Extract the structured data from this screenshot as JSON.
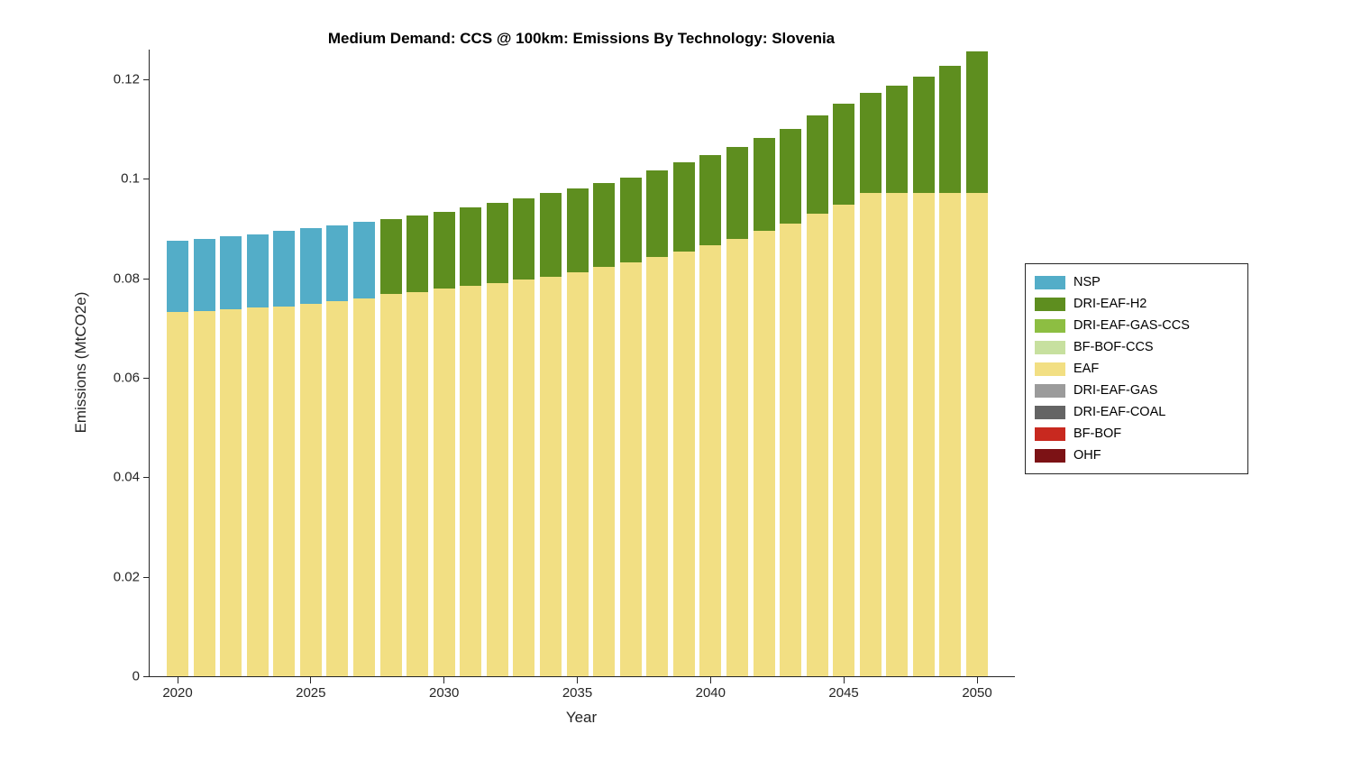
{
  "figure": {
    "background": "#FFFFFF",
    "axis_color": "#262626"
  },
  "chart_data": {
    "type": "bar",
    "stacked": true,
    "grid": false,
    "legend_position": "right-outside",
    "title": "Medium Demand: CCS @ 100km: Emissions By Technology: Slovenia",
    "xlabel": "Year",
    "ylabel": "Emissions (MtCO2e)",
    "x": [
      2020,
      2021,
      2022,
      2023,
      2024,
      2025,
      2026,
      2027,
      2028,
      2029,
      2030,
      2031,
      2032,
      2033,
      2034,
      2035,
      2036,
      2037,
      2038,
      2039,
      2040,
      2041,
      2042,
      2043,
      2044,
      2045,
      2046,
      2047,
      2048,
      2049,
      2050
    ],
    "xtick_values": [
      2020,
      2025,
      2030,
      2035,
      2040,
      2045,
      2050
    ],
    "xtick_labels": [
      "2020",
      "2025",
      "2030",
      "2035",
      "2040",
      "2045",
      "2050"
    ],
    "ytick_values": [
      0,
      0.02,
      0.04,
      0.06,
      0.08,
      0.1,
      0.12
    ],
    "ytick_labels": [
      "0",
      "0.02",
      "0.04",
      "0.06",
      "0.08",
      "0.1",
      "0.12"
    ],
    "ylim": [
      0,
      0.126
    ],
    "series": [
      {
        "name": "NSP",
        "color": "#53ADC8",
        "values": [
          0.0143,
          0.0144,
          0.0146,
          0.0148,
          0.0151,
          0.0153,
          0.0153,
          0.0153,
          0,
          0,
          0,
          0,
          0,
          0,
          0,
          0,
          0,
          0,
          0,
          0,
          0,
          0,
          0,
          0,
          0,
          0,
          0,
          0,
          0,
          0,
          0
        ]
      },
      {
        "name": "DRI-EAF-H2",
        "color": "#5E8E1F",
        "values": [
          0,
          0,
          0,
          0,
          0,
          0,
          0,
          0,
          0.0152,
          0.0154,
          0.0155,
          0.0157,
          0.016,
          0.0164,
          0.0167,
          0.0168,
          0.0167,
          0.017,
          0.0175,
          0.0179,
          0.0182,
          0.0185,
          0.0187,
          0.019,
          0.0198,
          0.0203,
          0.0201,
          0.0216,
          0.0234,
          0.0255,
          0.0284
        ]
      },
      {
        "name": "DRI-EAF-GAS-CCS",
        "color": "#8DBE42",
        "values": [
          0,
          0,
          0,
          0,
          0,
          0,
          0,
          0,
          0,
          0,
          0,
          0,
          0,
          0,
          0,
          0,
          0,
          0,
          0,
          0,
          0,
          0,
          0,
          0,
          0,
          0,
          0,
          0,
          0,
          0,
          0
        ]
      },
      {
        "name": "BF-BOF-CCS",
        "color": "#C7E09F",
        "values": [
          0,
          0,
          0,
          0,
          0,
          0,
          0,
          0,
          0,
          0,
          0,
          0,
          0,
          0,
          0,
          0,
          0,
          0,
          0,
          0,
          0,
          0,
          0,
          0,
          0,
          0,
          0,
          0,
          0,
          0,
          0
        ]
      },
      {
        "name": "EAF",
        "color": "#F2DF83",
        "values": [
          0.0732,
          0.0735,
          0.0738,
          0.0741,
          0.0744,
          0.0748,
          0.0754,
          0.076,
          0.0768,
          0.0773,
          0.0779,
          0.0785,
          0.0791,
          0.0797,
          0.0804,
          0.0813,
          0.0824,
          0.0833,
          0.0843,
          0.0854,
          0.0866,
          0.0879,
          0.0895,
          0.091,
          0.093,
          0.0948,
          0.0972,
          0.0972,
          0.0972,
          0.0972,
          0.0972
        ]
      },
      {
        "name": "DRI-EAF-GAS",
        "color": "#9B9B9B",
        "values": [
          0,
          0,
          0,
          0,
          0,
          0,
          0,
          0,
          0,
          0,
          0,
          0,
          0,
          0,
          0,
          0,
          0,
          0,
          0,
          0,
          0,
          0,
          0,
          0,
          0,
          0,
          0,
          0,
          0,
          0,
          0
        ]
      },
      {
        "name": "DRI-EAF-COAL",
        "color": "#646464",
        "values": [
          0,
          0,
          0,
          0,
          0,
          0,
          0,
          0,
          0,
          0,
          0,
          0,
          0,
          0,
          0,
          0,
          0,
          0,
          0,
          0,
          0,
          0,
          0,
          0,
          0,
          0,
          0,
          0,
          0,
          0,
          0
        ]
      },
      {
        "name": "BF-BOF",
        "color": "#C8291F",
        "values": [
          0,
          0,
          0,
          0,
          0,
          0,
          0,
          0,
          0,
          0,
          0,
          0,
          0,
          0,
          0,
          0,
          0,
          0,
          0,
          0,
          0,
          0,
          0,
          0,
          0,
          0,
          0,
          0,
          0,
          0,
          0
        ]
      },
      {
        "name": "OHF",
        "color": "#7C1215",
        "values": [
          0,
          0,
          0,
          0,
          0,
          0,
          0,
          0,
          0,
          0,
          0,
          0,
          0,
          0,
          0,
          0,
          0,
          0,
          0,
          0,
          0,
          0,
          0,
          0,
          0,
          0,
          0,
          0,
          0,
          0,
          0
        ]
      }
    ]
  }
}
